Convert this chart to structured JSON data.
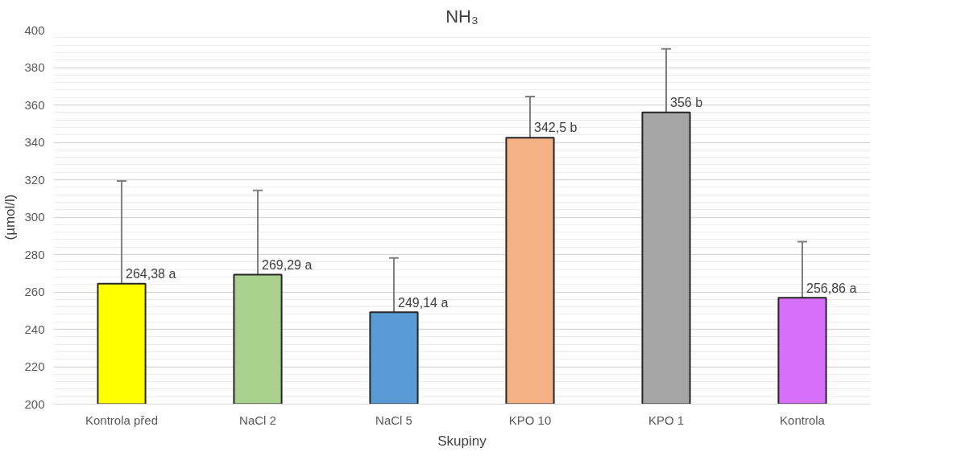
{
  "chart_data": {
    "type": "bar",
    "title": "NH₃",
    "xlabel": "Skupiny",
    "ylabel": "(µmol/l)",
    "categories": [
      "Kontrola před",
      "NaCl 2",
      "NaCl 5",
      "KPO 10",
      "KPO 1",
      "Kontrola"
    ],
    "values": [
      264.38,
      269.29,
      249.14,
      342.5,
      356,
      256.86
    ],
    "colors": [
      "#ffff00",
      "#a9d18e",
      "#5b9bd5",
      "#f4b183",
      "#a5a5a5",
      "#d670fa"
    ],
    "errors": [
      55,
      45,
      29,
      22,
      34,
      30
    ],
    "value_labels": [
      "264,38 a",
      "269,29 a",
      "249,14 a",
      "342,5 b",
      "356 b",
      "256,86 a"
    ],
    "ylim": [
      200,
      400
    ],
    "yticks": [
      200,
      220,
      240,
      260,
      280,
      300,
      320,
      340,
      360,
      380,
      400
    ],
    "grid": "y"
  }
}
